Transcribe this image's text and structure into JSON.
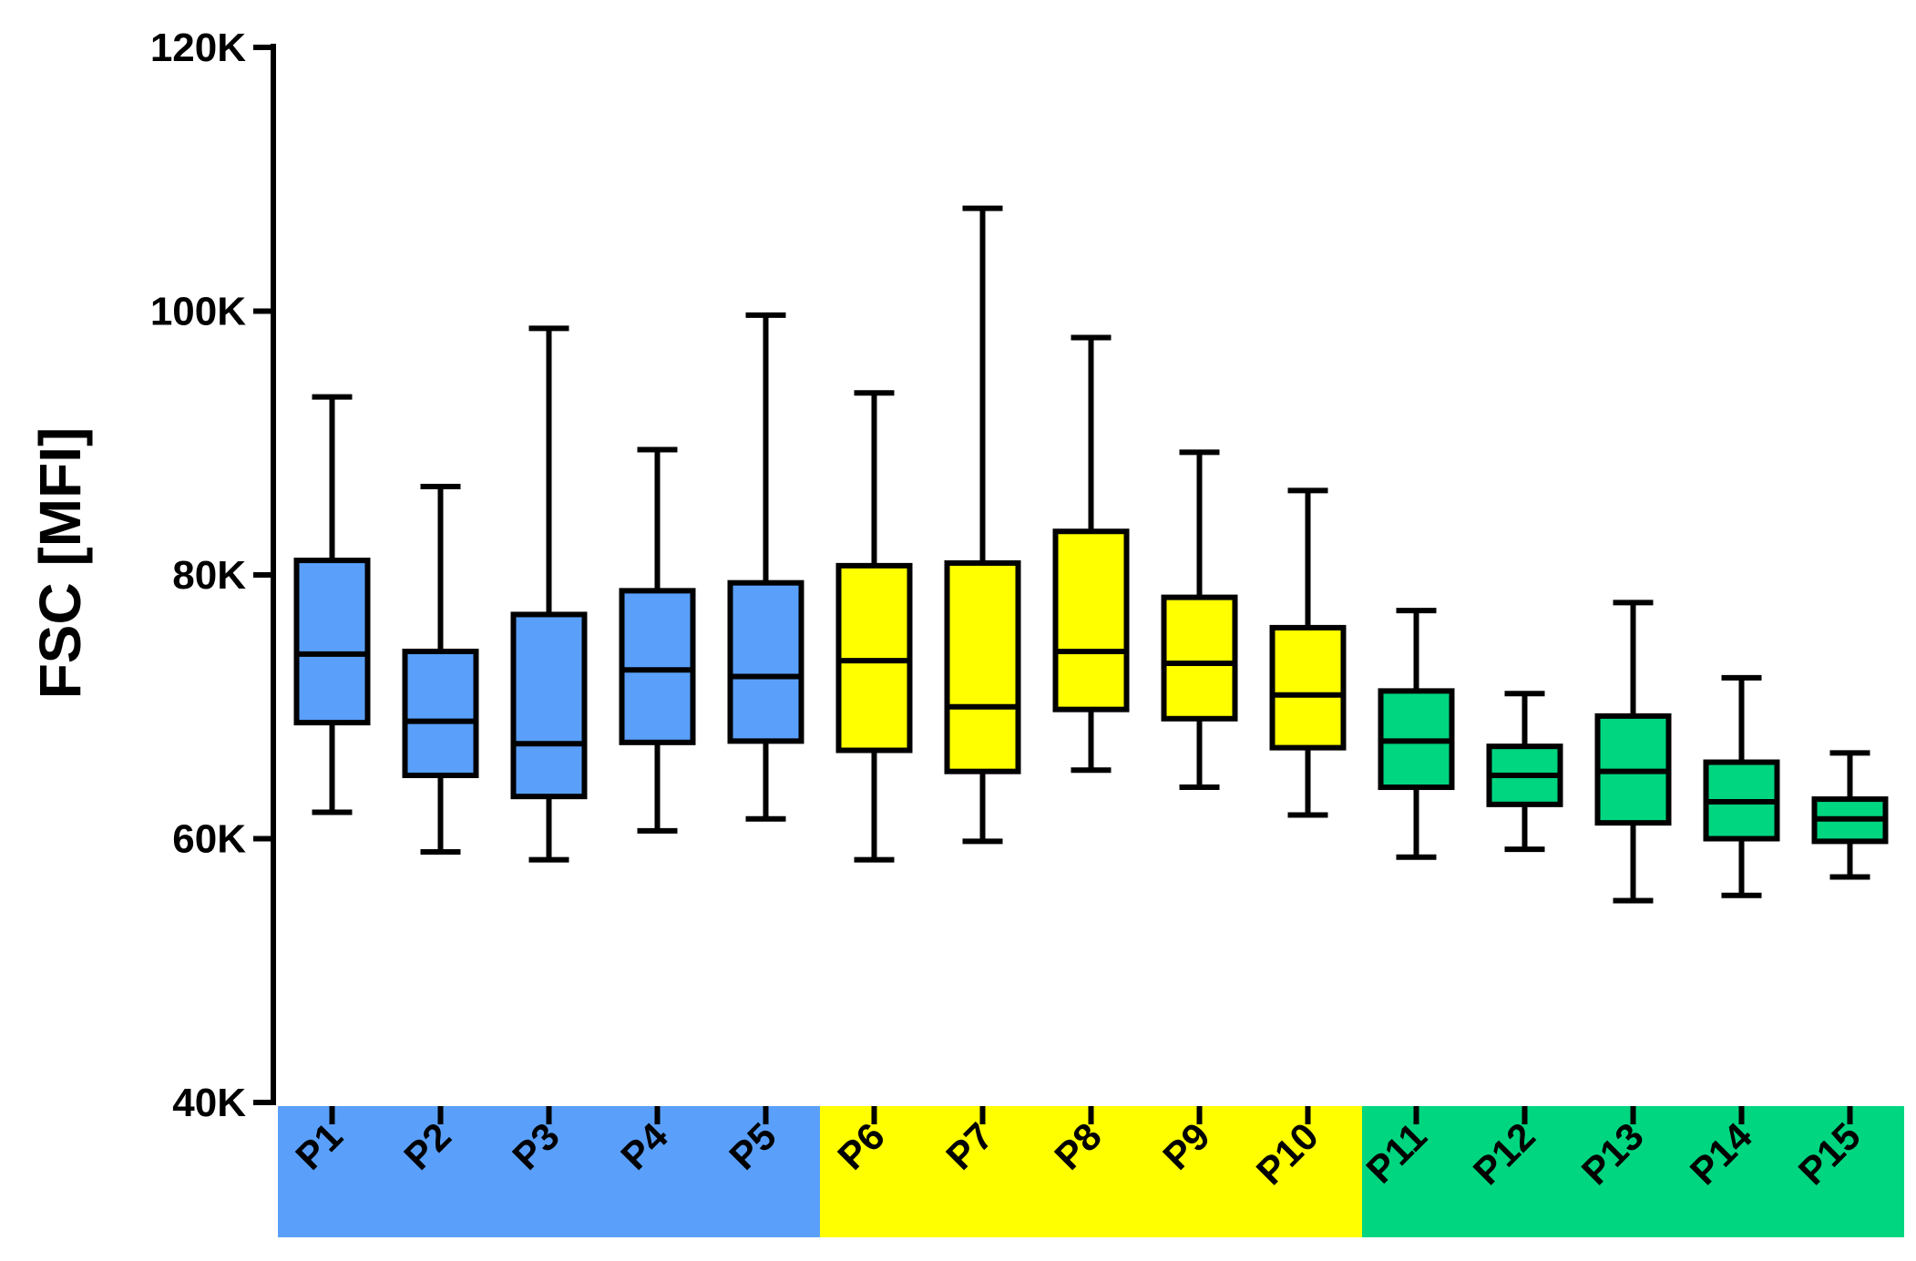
{
  "chart_data": {
    "type": "boxplot",
    "title": "",
    "xlabel": "",
    "ylabel": "FSC [MFI]",
    "ylim": [
      40000,
      120000
    ],
    "yticks": [
      {
        "value": 40000,
        "label": "40K"
      },
      {
        "value": 60000,
        "label": "60K"
      },
      {
        "value": 80000,
        "label": "80K"
      },
      {
        "value": 100000,
        "label": "100K"
      },
      {
        "value": 120000,
        "label": "120K"
      }
    ],
    "grid": false,
    "legend": "none",
    "categories": [
      "P1",
      "P2",
      "P3",
      "P4",
      "P5",
      "P6",
      "P7",
      "P8",
      "P9",
      "P10",
      "P11",
      "P12",
      "P13",
      "P14",
      "P15"
    ],
    "group_colors": [
      "#5aa0fa",
      "#ffff00",
      "#00d580"
    ],
    "groups": [
      {
        "categories": [
          "P1",
          "P2",
          "P3",
          "P4",
          "P5"
        ],
        "color": "#5aa0fa"
      },
      {
        "categories": [
          "P6",
          "P7",
          "P8",
          "P9",
          "P10"
        ],
        "color": "#ffff00"
      },
      {
        "categories": [
          "P11",
          "P12",
          "P13",
          "P14",
          "P15"
        ],
        "color": "#00d580"
      }
    ],
    "boxes": [
      {
        "name": "P1",
        "min": 62000,
        "q1": 68800,
        "median": 74000,
        "q3": 81100,
        "max": 93500,
        "color": "#5aa0fa"
      },
      {
        "name": "P2",
        "min": 59000,
        "q1": 64800,
        "median": 68900,
        "q3": 74200,
        "max": 86700,
        "color": "#5aa0fa"
      },
      {
        "name": "P3",
        "min": 58400,
        "q1": 63200,
        "median": 67200,
        "q3": 77000,
        "max": 98700,
        "color": "#5aa0fa"
      },
      {
        "name": "P4",
        "min": 60600,
        "q1": 67300,
        "median": 72800,
        "q3": 78800,
        "max": 89500,
        "color": "#5aa0fa"
      },
      {
        "name": "P5",
        "min": 61500,
        "q1": 67400,
        "median": 72300,
        "q3": 79400,
        "max": 99700,
        "color": "#5aa0fa"
      },
      {
        "name": "P6",
        "min": 58400,
        "q1": 66700,
        "median": 73500,
        "q3": 80700,
        "max": 93800,
        "color": "#ffff00"
      },
      {
        "name": "P7",
        "min": 59800,
        "q1": 65100,
        "median": 70000,
        "q3": 80900,
        "max": 107800,
        "color": "#ffff00"
      },
      {
        "name": "P8",
        "min": 65200,
        "q1": 69800,
        "median": 74200,
        "q3": 83300,
        "max": 98000,
        "color": "#ffff00"
      },
      {
        "name": "P9",
        "min": 63900,
        "q1": 69100,
        "median": 73300,
        "q3": 78300,
        "max": 89300,
        "color": "#ffff00"
      },
      {
        "name": "P10",
        "min": 61800,
        "q1": 66900,
        "median": 70900,
        "q3": 76000,
        "max": 86400,
        "color": "#ffff00"
      },
      {
        "name": "P11",
        "min": 58600,
        "q1": 63900,
        "median": 67400,
        "q3": 71200,
        "max": 77300,
        "color": "#00d580"
      },
      {
        "name": "P12",
        "min": 59200,
        "q1": 62600,
        "median": 64800,
        "q3": 67000,
        "max": 71000,
        "color": "#00d580"
      },
      {
        "name": "P13",
        "min": 55300,
        "q1": 61200,
        "median": 65100,
        "q3": 69300,
        "max": 77900,
        "color": "#00d580"
      },
      {
        "name": "P14",
        "min": 55700,
        "q1": 60000,
        "median": 62800,
        "q3": 65800,
        "max": 72200,
        "color": "#00d580"
      },
      {
        "name": "P15",
        "min": 57100,
        "q1": 59800,
        "median": 61500,
        "q3": 63000,
        "max": 66500,
        "color": "#00d580"
      }
    ]
  }
}
